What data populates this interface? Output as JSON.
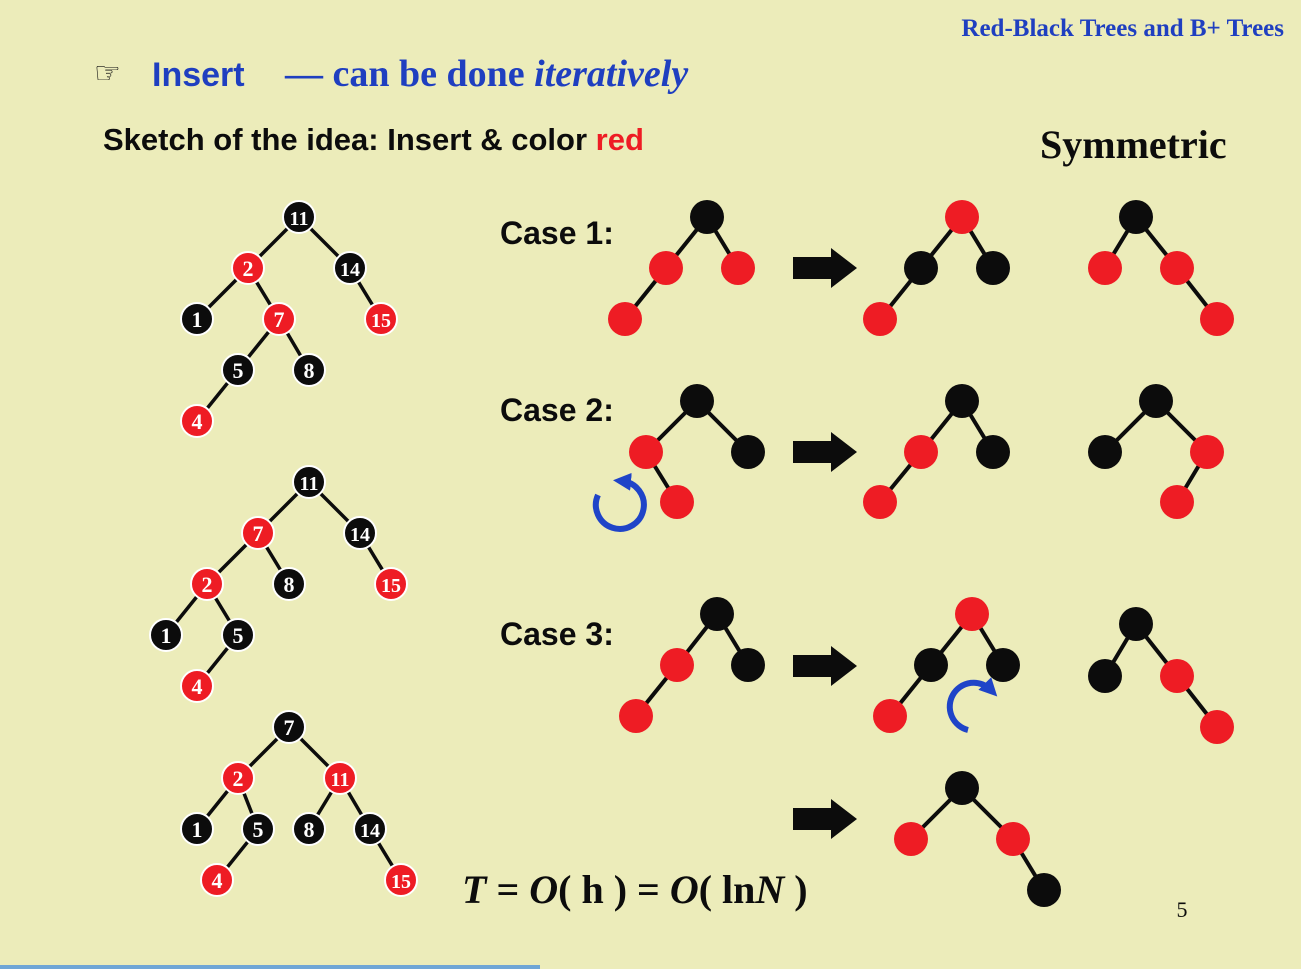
{
  "header": {
    "title": "Red-Black Trees and B+ Trees"
  },
  "heading": {
    "bullet": "☞",
    "word": "Insert",
    "dash_text": "— can be done ",
    "emph": "iteratively"
  },
  "sketch": {
    "prefix": "Sketch of the idea: Insert & color ",
    "red_word": "red"
  },
  "symmetric_label": "Symmetric",
  "cases": [
    "Case 1:",
    "Case 2:",
    "Case 3:"
  ],
  "formula": {
    "T": "T",
    "eq1": " = ",
    "O1": "O",
    "h_part": "( h )",
    "eq2": " = ",
    "O2": "O",
    "ln_open": "( ln",
    "N": "N",
    "close": " )"
  },
  "page_number": "5",
  "trees": [
    {
      "name": "example-tree-initial",
      "nodes": [
        {
          "key": "11",
          "color": "black"
        },
        {
          "key": "2",
          "color": "red"
        },
        {
          "key": "14",
          "color": "black"
        },
        {
          "key": "1",
          "color": "black"
        },
        {
          "key": "7",
          "color": "red"
        },
        {
          "key": "15",
          "color": "red"
        },
        {
          "key": "5",
          "color": "black"
        },
        {
          "key": "8",
          "color": "black"
        },
        {
          "key": "4",
          "color": "red"
        }
      ]
    },
    {
      "name": "example-tree-after-recolor-rotate",
      "nodes": [
        {
          "key": "11",
          "color": "black"
        },
        {
          "key": "7",
          "color": "red"
        },
        {
          "key": "14",
          "color": "black"
        },
        {
          "key": "2",
          "color": "red"
        },
        {
          "key": "8",
          "color": "black"
        },
        {
          "key": "15",
          "color": "red"
        },
        {
          "key": "1",
          "color": "black"
        },
        {
          "key": "5",
          "color": "black"
        },
        {
          "key": "4",
          "color": "red"
        }
      ]
    },
    {
      "name": "example-tree-final",
      "nodes": [
        {
          "key": "7",
          "color": "black"
        },
        {
          "key": "2",
          "color": "red"
        },
        {
          "key": "11",
          "color": "red"
        },
        {
          "key": "1",
          "color": "black"
        },
        {
          "key": "5",
          "color": "black"
        },
        {
          "key": "8",
          "color": "black"
        },
        {
          "key": "14",
          "color": "black"
        },
        {
          "key": "4",
          "color": "red"
        },
        {
          "key": "15",
          "color": "red"
        }
      ]
    }
  ],
  "colors": {
    "background": "#ececba",
    "red": "#ee1c24",
    "black": "#0c0c0c",
    "blue": "#1f3fc0",
    "rotate_arrow": "#1f44c8"
  }
}
